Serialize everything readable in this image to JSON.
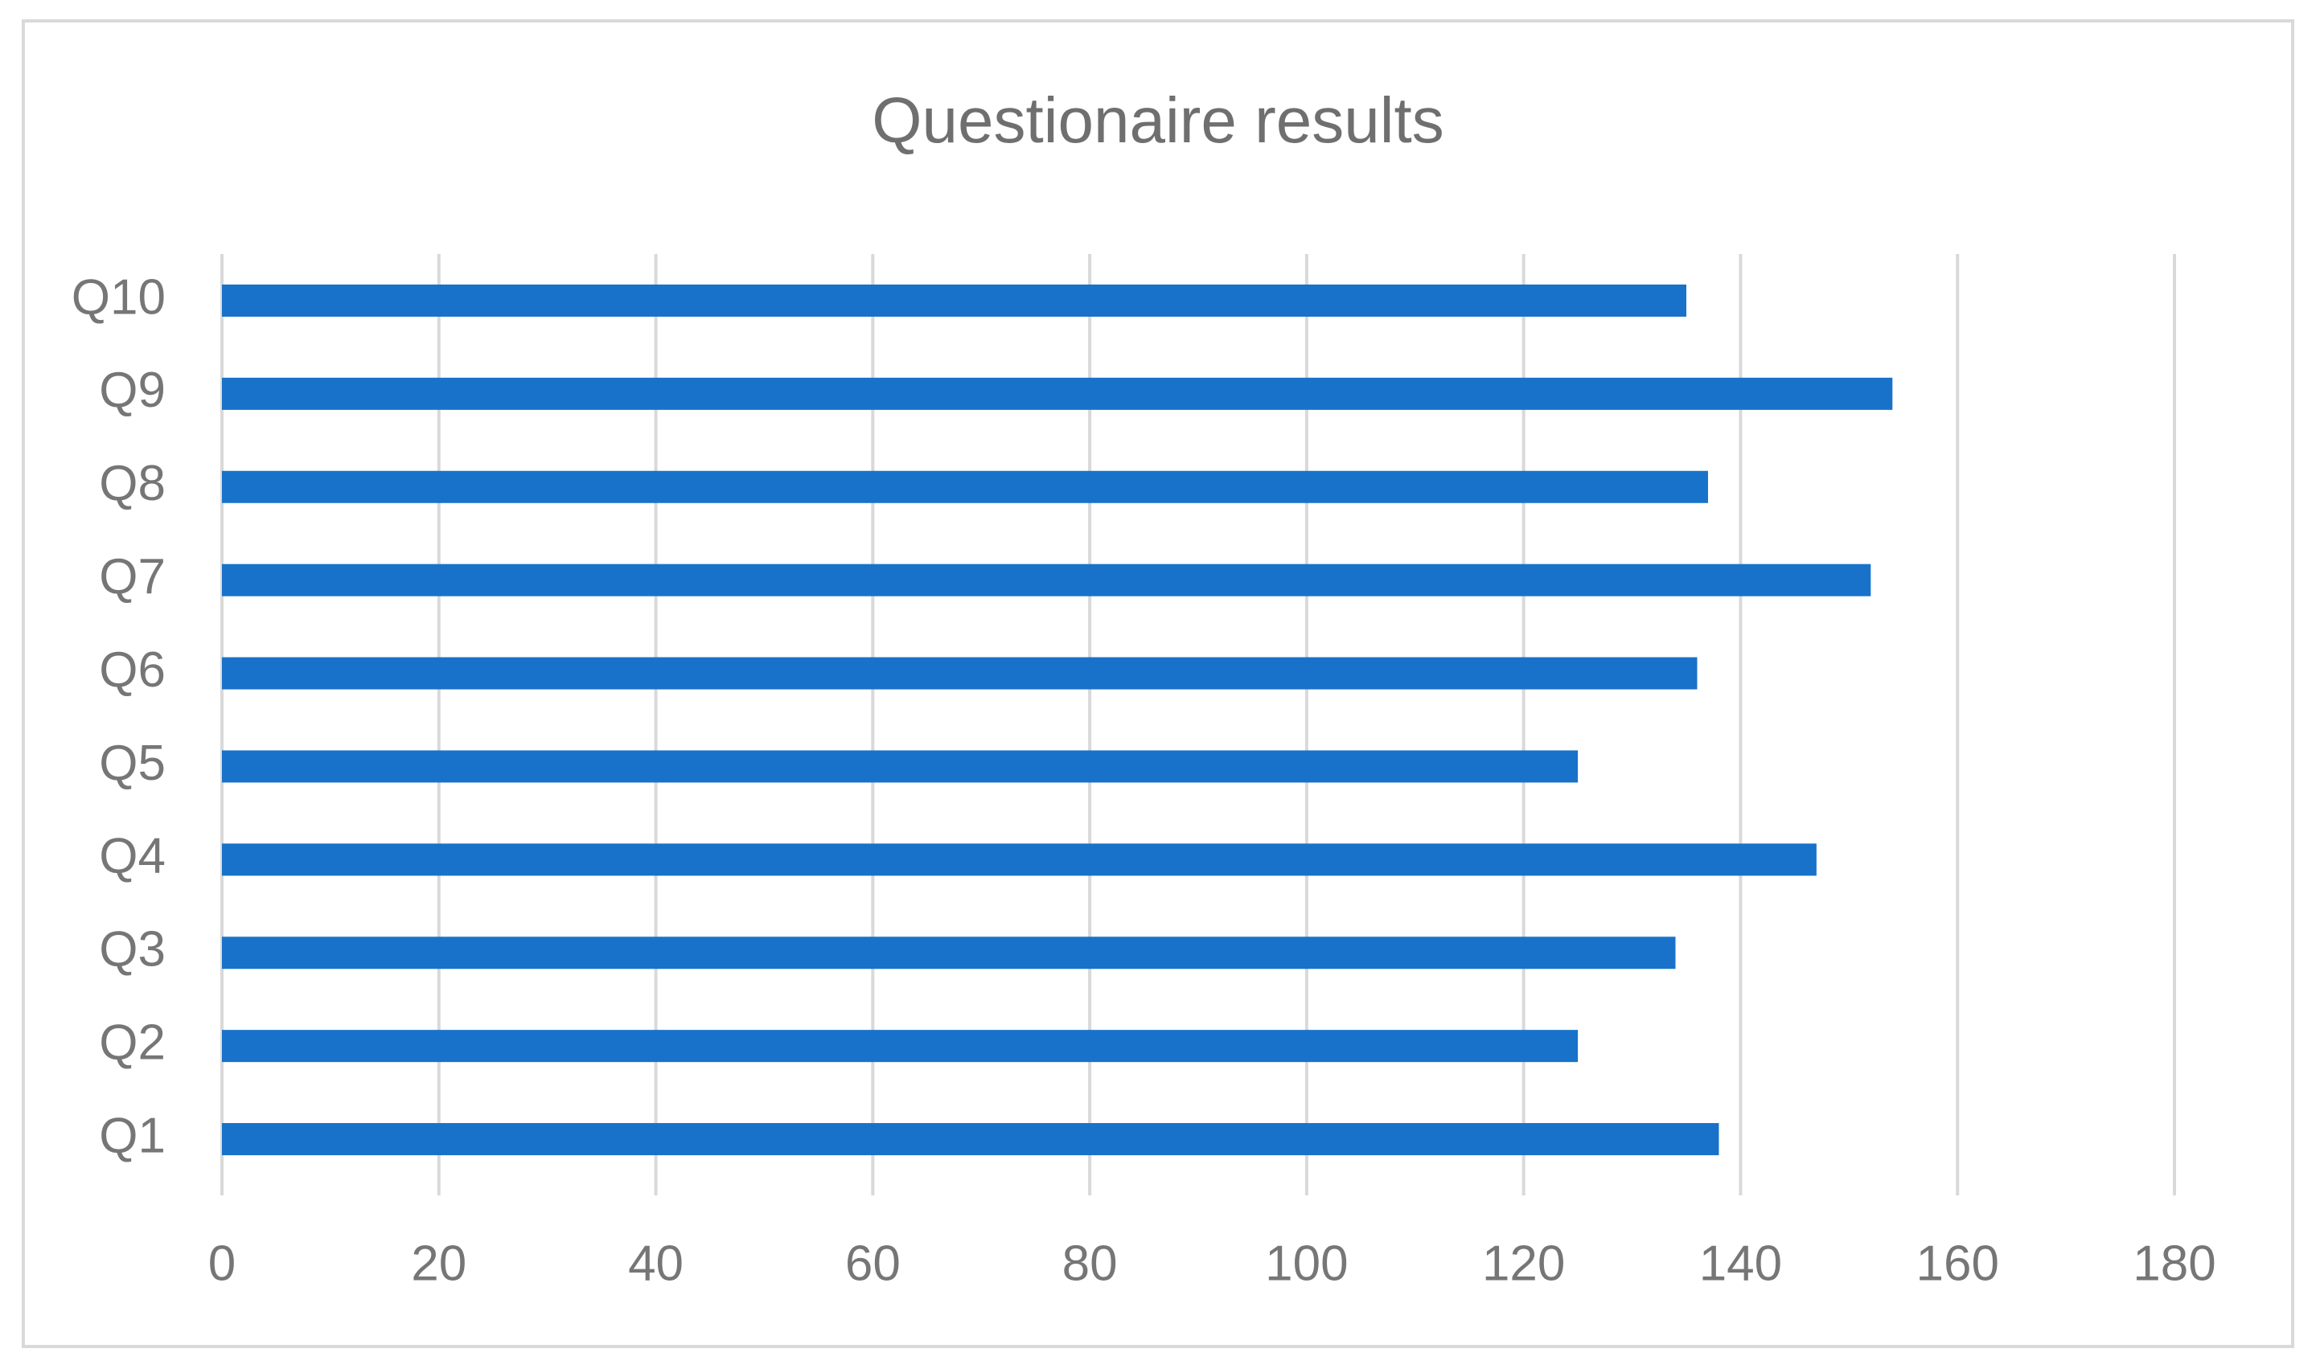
{
  "chart_data": {
    "type": "barh",
    "title": "Questionaire results",
    "categories": [
      "Q1",
      "Q2",
      "Q3",
      "Q4",
      "Q5",
      "Q6",
      "Q7",
      "Q8",
      "Q9",
      "Q10"
    ],
    "values": [
      138,
      125,
      134,
      147,
      125,
      136,
      152,
      137,
      154,
      135
    ],
    "color": "#1872c9",
    "xlim": [
      0,
      180
    ],
    "xticks": [
      0,
      20,
      40,
      60,
      80,
      100,
      120,
      140,
      160,
      180
    ],
    "grid": true
  }
}
